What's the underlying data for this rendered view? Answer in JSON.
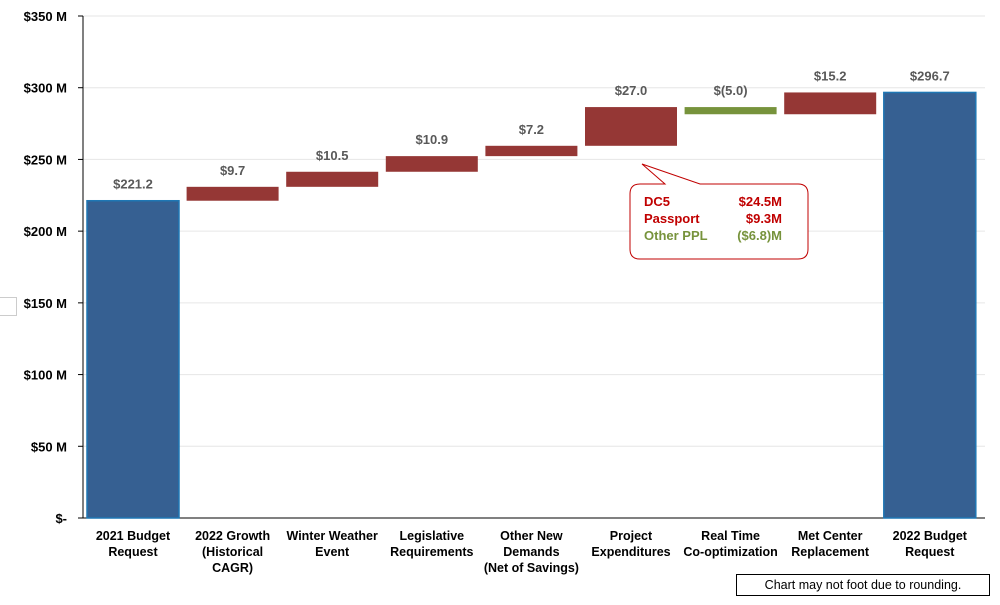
{
  "chart_data": {
    "type": "waterfall",
    "title": "",
    "ylim": [
      0,
      350
    ],
    "yticks": [
      0,
      50,
      100,
      150,
      200,
      250,
      300,
      350
    ],
    "ytick_labels": [
      "$-",
      "$50 M",
      "$100 M",
      "$150 M",
      "$200 M",
      "$250 M",
      "$300 M",
      "$350 M"
    ],
    "grid": true,
    "categories": [
      [
        "2021 Budget",
        "Request"
      ],
      [
        "2022 Growth",
        "(Historical",
        "CAGR)"
      ],
      [
        "Winter Weather",
        "Event"
      ],
      [
        "Legislative",
        "Requirements"
      ],
      [
        "Other New",
        "Demands",
        "(Net of Savings)"
      ],
      [
        "Project",
        "Expenditures"
      ],
      [
        "Real Time",
        "Co-optimization"
      ],
      [
        "Met Center",
        "Replacement"
      ],
      [
        "2022 Budget",
        "Request"
      ]
    ],
    "values": [
      221.2,
      9.7,
      10.5,
      10.9,
      7.2,
      27.0,
      -5.0,
      15.2,
      296.7
    ],
    "kinds": [
      "total",
      "delta",
      "delta",
      "delta",
      "delta",
      "delta",
      "delta",
      "delta",
      "total"
    ],
    "value_labels": [
      "$221.2",
      "$9.7",
      "$10.5",
      "$10.9",
      "$7.2",
      "$27.0",
      "$(5.0)",
      "$15.2",
      "$296.7"
    ],
    "colors": {
      "total": "#366092",
      "increase": "#953735",
      "decrease": "#77933C"
    }
  },
  "callout": {
    "rows": [
      {
        "label": "DC5",
        "value": "$24.5M",
        "color": "#C00000"
      },
      {
        "label": "Passport",
        "value": "$9.3M",
        "color": "#C00000"
      },
      {
        "label": "Other PPL",
        "value": "($6.8)M",
        "color": "#77933C"
      }
    ],
    "border_color": "#C00000"
  },
  "footnote": "Chart may not foot due to rounding."
}
